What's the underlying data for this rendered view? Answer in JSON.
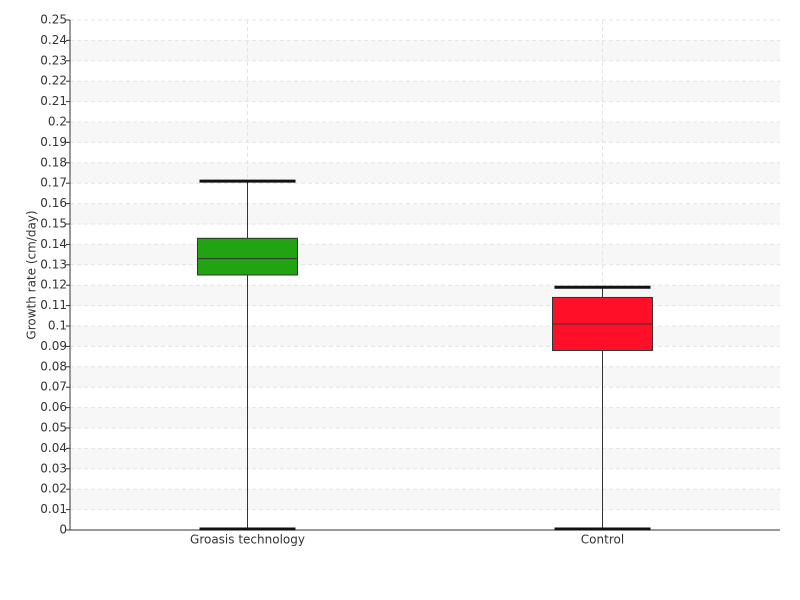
{
  "chart_data": {
    "type": "box",
    "y_label": "Growth rate (cm/day)",
    "categories": [
      "Groasis technology",
      "Control"
    ],
    "colors": [
      "#22a311",
      "#ff1028"
    ],
    "boxes": [
      {
        "min": 0,
        "q1": 0.125,
        "median": 0.133,
        "q3": 0.143,
        "max": 0.171
      },
      {
        "min": 0,
        "q1": 0.088,
        "median": 0.101,
        "q3": 0.114,
        "max": 0.119
      }
    ],
    "ylim": [
      0,
      0.25
    ],
    "yticks": [
      0,
      0.01,
      0.02,
      0.03,
      0.04,
      0.05,
      0.06,
      0.07,
      0.08,
      0.09,
      0.1,
      0.11,
      0.12,
      0.13,
      0.14,
      0.15,
      0.16,
      0.17,
      0.18,
      0.19,
      0.2,
      0.21,
      0.22,
      0.23,
      0.24,
      0.25
    ],
    "grid": true
  }
}
